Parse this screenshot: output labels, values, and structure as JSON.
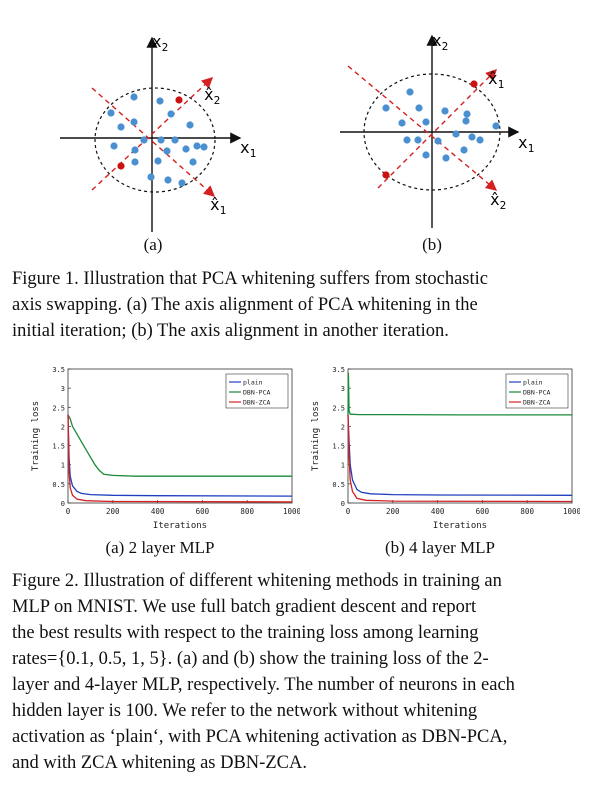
{
  "figure1": {
    "panel_a": {
      "axis_x": "x",
      "axis_x_sub": "1",
      "axis_y": "x",
      "axis_y_sub": "2",
      "hat1": "x̂",
      "hat1_sub": "1",
      "hat2": "x̂",
      "hat2_sub": "2",
      "sublabel": "(a)"
    },
    "panel_b": {
      "axis_x": "x",
      "axis_x_sub": "1",
      "axis_y": "x",
      "axis_y_sub": "2",
      "hat1": "x̂",
      "hat1_sub": "1",
      "hat2": "x̂",
      "hat2_sub": "2",
      "sublabel": "(b)"
    },
    "caption_lines": [
      "Figure 1. Illustration that PCA whitening suffers from stochastic",
      "axis swapping.  (a) The axis alignment of PCA whitening in the",
      "initial iteration; (b) The axis alignment in another iteration."
    ]
  },
  "figure2": {
    "caption_lines": [
      "Figure 2. Illustration of different whitening methods in training an",
      "MLP on MNIST. We use full batch gradient descent and report",
      "the best results with respect to the training loss among learning",
      "rates={0.1, 0.5, 1, 5}. (a) and (b) show the training loss of the 2-",
      "layer and 4-layer MLP, respectively. The number of neurons in each",
      "hidden layer is 100.  We refer to the network without whitening",
      "activation as ‘plain‘, with PCA whitening activation as DBN-PCA,",
      "and with ZCA whitening as DBN-ZCA."
    ]
  },
  "colors": {
    "plain": "#1f3fbf",
    "pca": "#1a8a3a",
    "zca": "#d42020",
    "point": "#4a90d0",
    "point_red": "#cc1111"
  },
  "chart_data": [
    {
      "type": "line",
      "title": "",
      "sublabel": "(a) 2 layer MLP",
      "xlabel": "Iterations",
      "ylabel": "Training loss",
      "xlim": [
        0,
        1000
      ],
      "ylim": [
        0,
        3.5
      ],
      "xticks": [
        "0",
        "200",
        "400",
        "600",
        "800",
        "1000"
      ],
      "yticks": [
        "0",
        "0.5",
        "1",
        "1.5",
        "2",
        "2.5",
        "3",
        "3.5"
      ],
      "legend": "top-right",
      "series": [
        {
          "name": "plain",
          "x": [
            0,
            5,
            10,
            20,
            40,
            60,
            100,
            200,
            400,
            1000
          ],
          "y": [
            2.3,
            1.2,
            0.7,
            0.45,
            0.3,
            0.25,
            0.22,
            0.2,
            0.19,
            0.18
          ]
        },
        {
          "name": "DBN-PCA",
          "x": [
            0,
            10,
            20,
            40,
            60,
            80,
            100,
            120,
            140,
            160,
            200,
            300,
            600,
            1000
          ],
          "y": [
            2.3,
            2.2,
            2.0,
            1.8,
            1.6,
            1.4,
            1.2,
            1.0,
            0.85,
            0.75,
            0.72,
            0.7,
            0.7,
            0.7
          ]
        },
        {
          "name": "DBN-ZCA",
          "x": [
            0,
            5,
            10,
            20,
            40,
            80,
            200,
            1000
          ],
          "y": [
            2.3,
            0.8,
            0.4,
            0.2,
            0.1,
            0.06,
            0.04,
            0.03
          ]
        }
      ]
    },
    {
      "type": "line",
      "title": "",
      "sublabel": "(b) 4 layer MLP",
      "xlabel": "Iterations",
      "ylabel": "Training loss",
      "xlim": [
        0,
        1000
      ],
      "ylim": [
        0,
        3.5
      ],
      "xticks": [
        "0",
        "200",
        "400",
        "600",
        "800",
        "1000"
      ],
      "yticks": [
        "0",
        "0.5",
        "1",
        "1.5",
        "2",
        "2.5",
        "3",
        "3.5"
      ],
      "legend": "top-right",
      "series": [
        {
          "name": "plain",
          "x": [
            0,
            5,
            10,
            20,
            40,
            60,
            100,
            200,
            400,
            1000
          ],
          "y": [
            2.3,
            1.6,
            1.0,
            0.6,
            0.35,
            0.28,
            0.24,
            0.22,
            0.21,
            0.2
          ]
        },
        {
          "name": "DBN-PCA",
          "x": [
            0,
            2,
            5,
            10,
            50,
            200,
            500,
            1000
          ],
          "y": [
            2.3,
            3.4,
            2.4,
            2.32,
            2.31,
            2.31,
            2.3,
            2.3
          ]
        },
        {
          "name": "DBN-ZCA",
          "x": [
            0,
            5,
            10,
            20,
            40,
            80,
            200,
            1000
          ],
          "y": [
            2.3,
            1.2,
            0.6,
            0.3,
            0.12,
            0.07,
            0.05,
            0.04
          ]
        }
      ]
    }
  ]
}
